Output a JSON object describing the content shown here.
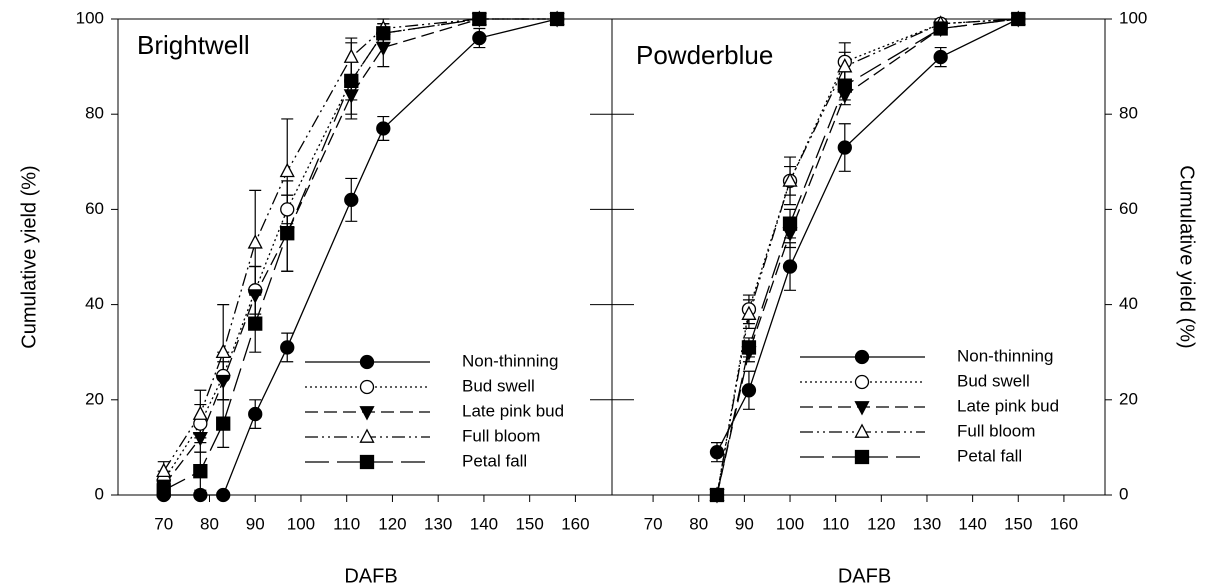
{
  "chart_data": [
    {
      "type": "line",
      "title": "Brightwell",
      "xlabel": "DAFB",
      "ylabel": "Cumulative yield (%)",
      "x": [
        70,
        78,
        83,
        90,
        97,
        111,
        118,
        139,
        156
      ],
      "xlim": [
        60,
        168
      ],
      "xticks": [
        70,
        80,
        90,
        100,
        110,
        120,
        130,
        140,
        150,
        160
      ],
      "ylim": [
        0,
        100
      ],
      "yticks": [
        0,
        20,
        40,
        60,
        80,
        100
      ],
      "legend": "lower right",
      "series": [
        {
          "name": "Non-thinning",
          "color": "#000000",
          "marker": "circle",
          "filled": true,
          "dash": "solid",
          "values": [
            0,
            0,
            0,
            17,
            31,
            62,
            77,
            96,
            100
          ],
          "errors": [
            0,
            0,
            0,
            3,
            3,
            4.5,
            2.5,
            2,
            0
          ]
        },
        {
          "name": "Bud swell",
          "color": "#000000",
          "marker": "circle",
          "filled": false,
          "dash": "dotted",
          "values": [
            3,
            15,
            25,
            43,
            60,
            87,
            97,
            100,
            100
          ],
          "errors": [
            2,
            4,
            5,
            5,
            6,
            8,
            2,
            0,
            0
          ]
        },
        {
          "name": "Late pink bud",
          "color": "#000000",
          "marker": "triangle-down",
          "filled": true,
          "dash": "dashed",
          "values": [
            2,
            12,
            24,
            42,
            55,
            84,
            94,
            100,
            100
          ],
          "errors": [
            2,
            3,
            4,
            6,
            8,
            4,
            4,
            0,
            0
          ]
        },
        {
          "name": "Full bloom",
          "color": "#000000",
          "marker": "triangle-up",
          "filled": false,
          "dash": "dash-dot-dot",
          "values": [
            5,
            17,
            30,
            53,
            68,
            92,
            98,
            100,
            100
          ],
          "errors": [
            2,
            5,
            10,
            11,
            11,
            4,
            2,
            0,
            0
          ]
        },
        {
          "name": "Petal fall",
          "color": "#000000",
          "marker": "square",
          "filled": true,
          "dash": "long-dash",
          "values": [
            1,
            5,
            15,
            36,
            55,
            87,
            97,
            100,
            100
          ],
          "errors": [
            1,
            4,
            5,
            6,
            8,
            4,
            2,
            0,
            0
          ]
        }
      ]
    },
    {
      "type": "line",
      "title": "Powderblue",
      "xlabel": "DAFB",
      "ylabel": "Cumulative yield (%)",
      "x": [
        84,
        91,
        100,
        112,
        133,
        150
      ],
      "xlim": [
        61,
        169
      ],
      "xticks": [
        70,
        80,
        90,
        100,
        110,
        120,
        130,
        140,
        150,
        160
      ],
      "ylim": [
        0,
        100
      ],
      "yticks": [
        0,
        20,
        40,
        60,
        80,
        100
      ],
      "legend": "lower right",
      "series": [
        {
          "name": "Non-thinning",
          "color": "#000000",
          "marker": "circle",
          "filled": true,
          "dash": "solid",
          "values": [
            9,
            22,
            48,
            73,
            92,
            100
          ],
          "errors": [
            2,
            4,
            5,
            5,
            2,
            0
          ]
        },
        {
          "name": "Bud swell",
          "color": "#000000",
          "marker": "circle",
          "filled": false,
          "dash": "dotted",
          "values": [
            0,
            39,
            66,
            91,
            99,
            100
          ],
          "errors": [
            0,
            3,
            5,
            4,
            1,
            0
          ]
        },
        {
          "name": "Late pink bud",
          "color": "#000000",
          "marker": "triangle-down",
          "filled": true,
          "dash": "dashed",
          "values": [
            0,
            30,
            55,
            84,
            98,
            100
          ],
          "errors": [
            0,
            2,
            3,
            2,
            1,
            0
          ]
        },
        {
          "name": "Full bloom",
          "color": "#000000",
          "marker": "triangle-up",
          "filled": false,
          "dash": "dash-dot-dot",
          "values": [
            0,
            38,
            66,
            90,
            99,
            100
          ],
          "errors": [
            0,
            3,
            3,
            3,
            1,
            0
          ]
        },
        {
          "name": "Petal fall",
          "color": "#000000",
          "marker": "square",
          "filled": true,
          "dash": "long-dash",
          "values": [
            0,
            31,
            57,
            86,
            98,
            100
          ],
          "errors": [
            0,
            2,
            3,
            3,
            1,
            0
          ]
        }
      ]
    }
  ]
}
